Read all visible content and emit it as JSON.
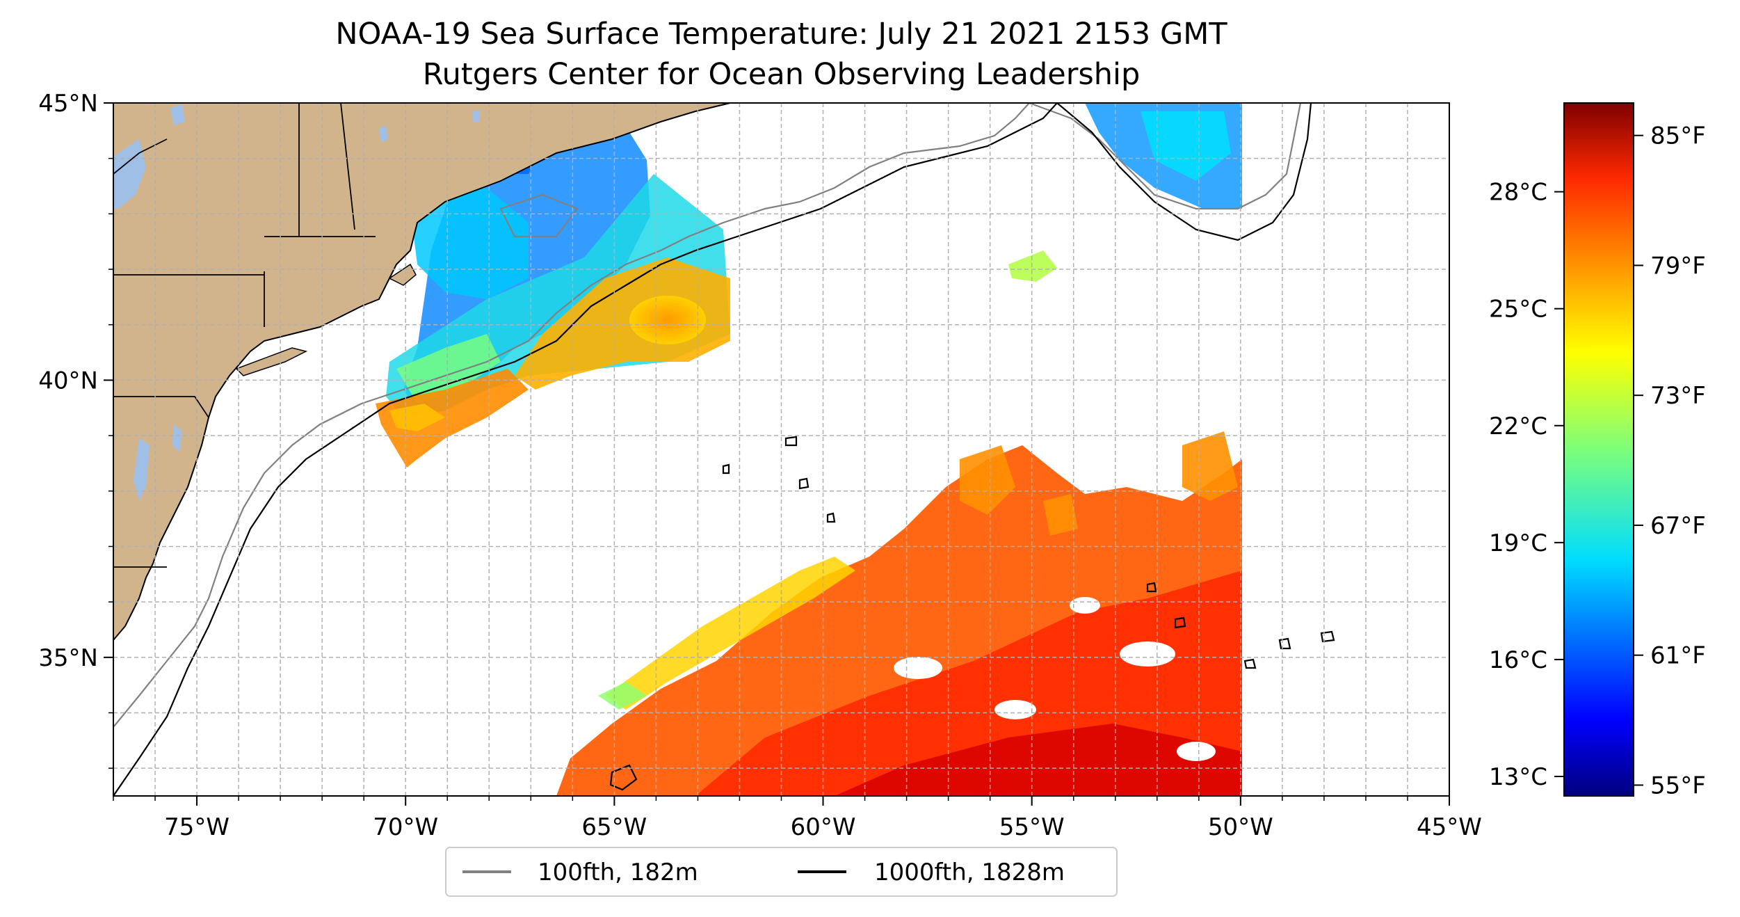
{
  "title": {
    "line1": "NOAA-19 Sea Surface Temperature: July 21 2021 2153 GMT",
    "line2": "Rutgers Center for Ocean Observing Leadership"
  },
  "map": {
    "type": "sea-surface-temperature-map",
    "lon_range": [
      -77,
      -45
    ],
    "lat_range": [
      32.5,
      45
    ],
    "gridlines": "dashed",
    "land_color": "#d2b48c",
    "lakes_color": "#9fbfe6",
    "x_ticks": [
      {
        "lon": -75,
        "label": "75°W"
      },
      {
        "lon": -70,
        "label": "70°W"
      },
      {
        "lon": -65,
        "label": "65°W"
      },
      {
        "lon": -60,
        "label": "60°W"
      },
      {
        "lon": -55,
        "label": "55°W"
      },
      {
        "lon": -50,
        "label": "50°W"
      },
      {
        "lon": -45,
        "label": "45°W"
      }
    ],
    "y_ticks": [
      {
        "lat": 45,
        "label": "45°N"
      },
      {
        "lat": 40,
        "label": "40°N"
      },
      {
        "lat": 35,
        "label": "35°N"
      }
    ]
  },
  "legend": {
    "placement": "below-center",
    "items": [
      {
        "label": "100fth, 182m",
        "color": "#808080"
      },
      {
        "label": "1000fth, 1828m",
        "color": "#000000"
      }
    ]
  },
  "colorbar": {
    "colormap": "jet",
    "range_fahrenheit": [
      54.5,
      86.5
    ],
    "celsius_ticks": [
      {
        "c": 13,
        "label": "13°C"
      },
      {
        "c": 16,
        "label": "16°C"
      },
      {
        "c": 19,
        "label": "19°C"
      },
      {
        "c": 22,
        "label": "22°C"
      },
      {
        "c": 25,
        "label": "25°C"
      },
      {
        "c": 28,
        "label": "28°C"
      }
    ],
    "fahrenheit_ticks": [
      {
        "f": 55,
        "label": "55°F"
      },
      {
        "f": 61,
        "label": "61°F"
      },
      {
        "f": 67,
        "label": "67°F"
      },
      {
        "f": 73,
        "label": "73°F"
      },
      {
        "f": 79,
        "label": "79°F"
      },
      {
        "f": 85,
        "label": "85°F"
      }
    ]
  }
}
